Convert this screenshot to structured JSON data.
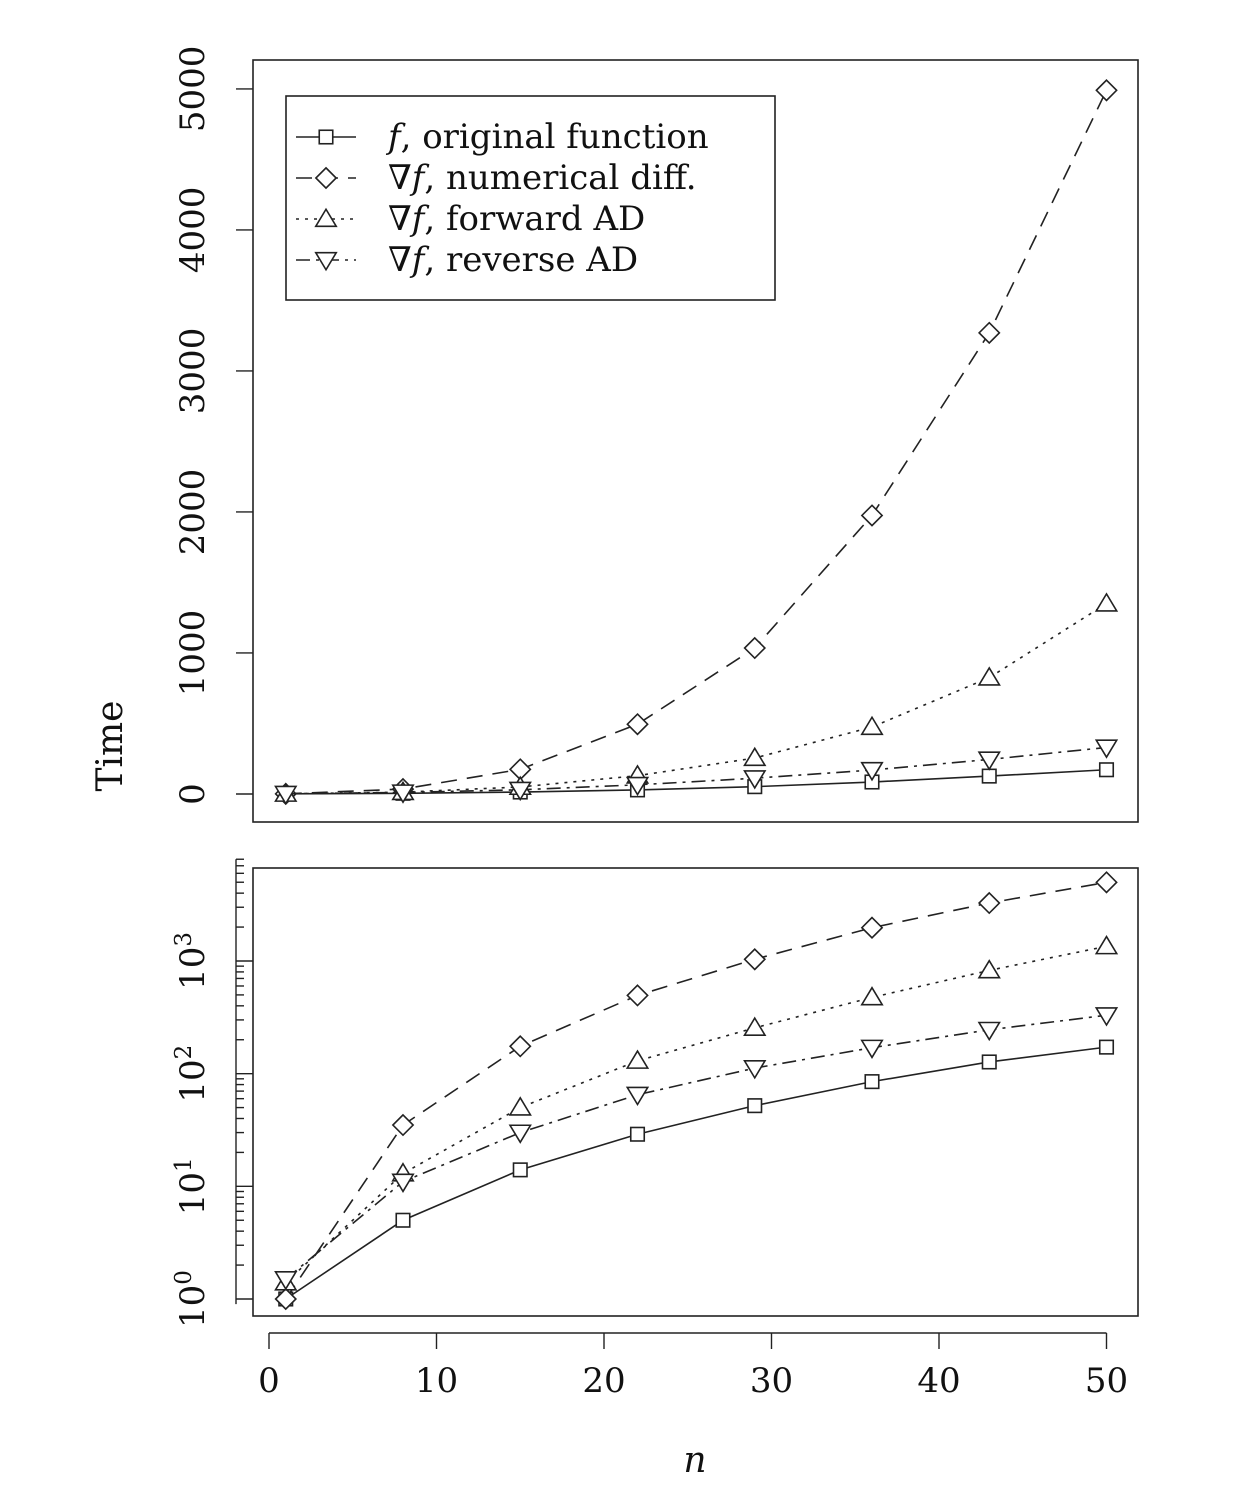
{
  "chart_data": [
    {
      "type": "line",
      "panel": "linear",
      "x": [
        1,
        8,
        15,
        22,
        29,
        36,
        43,
        50
      ],
      "series": [
        {
          "name": "f, original function",
          "legend_symbol": "f",
          "legend_rest": ", original function",
          "marker": "square",
          "dash": "solid",
          "values": [
            1,
            5,
            14,
            29,
            52,
            85,
            127,
            172
          ]
        },
        {
          "name": "∇f, numerical diff.",
          "legend_symbol": "∇f",
          "legend_rest": ", numerical diff.",
          "marker": "diamond",
          "dash": "dashed",
          "values": [
            1,
            35,
            175,
            495,
            1035,
            1975,
            3270,
            4990
          ]
        },
        {
          "name": "∇f, forward AD",
          "legend_symbol": "∇f",
          "legend_rest": ", forward AD",
          "marker": "triangle-up",
          "dash": "dotted",
          "values": [
            1.4,
            13,
            50,
            130,
            255,
            475,
            825,
            1350
          ]
        },
        {
          "name": "∇f, reverse AD",
          "legend_symbol": "∇f",
          "legend_rest": ", reverse AD",
          "marker": "triangle-down",
          "dash": "dotdash",
          "values": [
            1.5,
            11,
            30,
            65,
            112,
            170,
            245,
            330
          ]
        }
      ],
      "xlim": [
        0,
        52
      ],
      "ylim": [
        -200,
        5200
      ],
      "yticks": [
        0,
        1000,
        2000,
        3000,
        4000,
        5000
      ],
      "ytick_labels": [
        "0",
        "1000",
        "2000",
        "3000",
        "4000",
        "5000"
      ],
      "ylabel": "Time",
      "legend": "top-left"
    },
    {
      "type": "line",
      "panel": "log",
      "yscale": "log",
      "x": [
        1,
        8,
        15,
        22,
        29,
        36,
        43,
        50
      ],
      "series": [
        {
          "name": "f, original function",
          "values": [
            1,
            5,
            14,
            29,
            52,
            85,
            127,
            172
          ]
        },
        {
          "name": "∇f, numerical diff.",
          "values": [
            1,
            35,
            175,
            495,
            1035,
            1975,
            3270,
            4990
          ]
        },
        {
          "name": "∇f, forward AD",
          "values": [
            1.4,
            13,
            50,
            130,
            255,
            475,
            825,
            1350
          ]
        },
        {
          "name": "∇f, reverse AD",
          "values": [
            1.5,
            11,
            30,
            65,
            112,
            170,
            245,
            330
          ]
        }
      ],
      "xlim": [
        0,
        52
      ],
      "ylim": [
        0.9,
        8000
      ],
      "yticks": [
        1,
        10,
        100,
        1000
      ],
      "ytick_labels": [
        {
          "base": "10",
          "exp": "0"
        },
        {
          "base": "10",
          "exp": "1"
        },
        {
          "base": "10",
          "exp": "2"
        },
        {
          "base": "10",
          "exp": "3"
        }
      ],
      "xticks": [
        0,
        10,
        20,
        30,
        40,
        50
      ],
      "xtick_labels": [
        "0",
        "10",
        "20",
        "30",
        "40",
        "50"
      ],
      "xlabel": "n"
    }
  ]
}
